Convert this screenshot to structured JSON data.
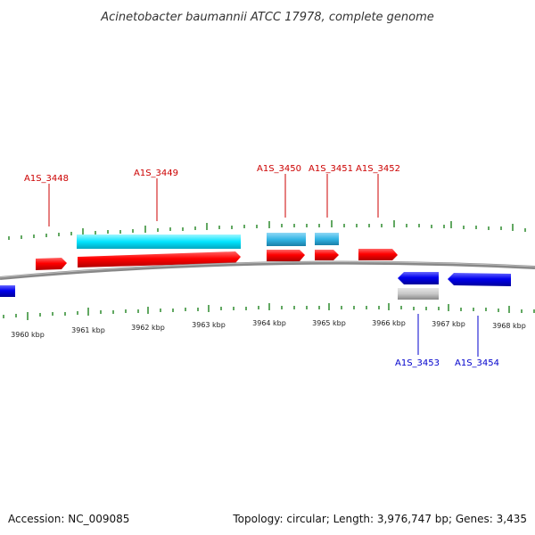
{
  "title": "Acinetobacter baumannii ATCC 17978, complete genome",
  "footer": {
    "accession": "Accession: NC_009085",
    "topology": "Topology: circular; Length: 3,976,747 bp; Genes: 3,435"
  },
  "colors": {
    "forward_gene": "#ff0000",
    "forward_cds": "#00e5ff",
    "forward_cds_alt": "#33b5e5",
    "reverse_gene": "#0000ee",
    "reverse_feature": "#c8c8c8",
    "tick": "#2e8b2e",
    "backbone": "#888888",
    "label_forward": "#cc0000",
    "label_reverse": "#0000cc"
  },
  "kbp_labels": [
    "3960 kbp",
    "3961 kbp",
    "3962 kbp",
    "3963 kbp",
    "3964 kbp",
    "3965 kbp",
    "3966 kbp",
    "3967 kbp",
    "3968 kbp"
  ],
  "forward_genes": [
    {
      "name": "A1S_3448",
      "labeled": true
    },
    {
      "name": "A1S_3449",
      "labeled": true
    },
    {
      "name": "A1S_3450",
      "labeled": true
    },
    {
      "name": "A1S_3451",
      "labeled": true
    },
    {
      "name": "A1S_3452",
      "labeled": true
    }
  ],
  "reverse_genes": [
    {
      "name": "A1S_3453",
      "labeled": true
    },
    {
      "name": "A1S_3454",
      "labeled": true
    }
  ]
}
